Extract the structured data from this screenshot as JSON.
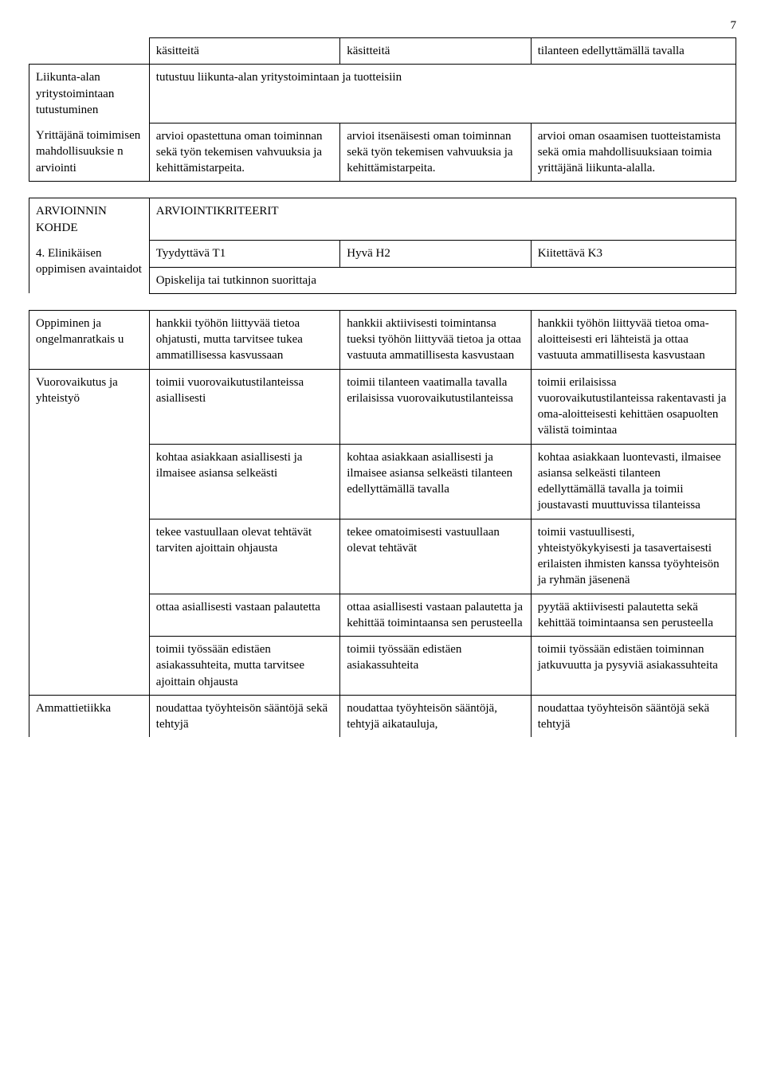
{
  "page_number": "7",
  "table1": {
    "row0": {
      "c1": "käsitteitä",
      "c2": "käsitteitä",
      "c3": "tilanteen edellyttämällä tavalla"
    },
    "row1": {
      "label": "Liikunta-alan yritystoimintaan tutustuminen",
      "span": "tutustuu liikunta-alan yritystoimintaan ja tuotteisiin"
    },
    "row2": {
      "label": "Yrittäjänä toimimisen mahdollisuuksie n arviointi",
      "c1": "arvioi opastettuna oman toiminnan sekä työn tekemisen vahvuuksia ja kehittämistarpeita.",
      "c2": "arvioi itsenäisesti oman toiminnan sekä työn tekemisen vahvuuksia ja kehittämistarpeita.",
      "c3": "arvioi oman osaamisen tuotteistamista sekä omia mahdollisuuksiaan toimia yrittäjänä liikunta-alalla."
    }
  },
  "table2": {
    "row0": {
      "label": "ARVIOINNIN KOHDE",
      "span": "ARVIOINTIKRITEERIT"
    },
    "row1": {
      "label": "4. Elinikäisen oppimisen avaintaidot",
      "c1": "Tyydyttävä T1",
      "c2": "Hyvä H2",
      "c3": "Kiitettävä K3"
    },
    "row1b": {
      "span": "Opiskelija tai tutkinnon suorittaja"
    }
  },
  "table3": {
    "r0": {
      "label": "Oppiminen ja ongelmanratkais u",
      "c1": "hankkii työhön liittyvää tietoa ohjatusti, mutta tarvitsee tukea ammatillisessa kasvussaan",
      "c2": "hankkii aktiivisesti toimintansa tueksi työhön liittyvää tietoa ja ottaa vastuuta ammatillisesta kasvustaan",
      "c3": "hankkii työhön liittyvää tietoa oma-aloitteisesti eri lähteistä ja ottaa vastuuta ammatillisesta kasvustaan"
    },
    "r1": {
      "label": "Vuorovaikutus ja yhteistyö",
      "c1": "toimii vuorovaikutustilanteissa asiallisesti",
      "c2": "toimii tilanteen vaatimalla tavalla erilaisissa vuorovaikutustilanteissa",
      "c3": "toimii erilaisissa vuorovaikutustilanteissa rakentavasti ja oma-aloitteisesti kehittäen osapuolten välistä toimintaa"
    },
    "r2": {
      "c1": "kohtaa asiakkaan asiallisesti ja ilmaisee asiansa selkeästi",
      "c2": "kohtaa asiakkaan asiallisesti ja ilmaisee asiansa selkeästi tilanteen edellyttämällä tavalla",
      "c3": "kohtaa asiakkaan luontevasti, ilmaisee asiansa selkeästi tilanteen edellyttämällä tavalla ja toimii joustavasti muuttuvissa tilanteissa"
    },
    "r3": {
      "c1": "tekee vastuullaan olevat tehtävät tarviten ajoittain ohjausta",
      "c2": "tekee omatoimisesti vastuullaan olevat tehtävät",
      "c3": "toimii vastuullisesti, yhteistyökykyisesti ja tasavertaisesti erilaisten ihmisten kanssa työyhteisön ja ryhmän jäsenenä"
    },
    "r4": {
      "c1": "ottaa asiallisesti vastaan palautetta",
      "c2": "ottaa asiallisesti vastaan palautetta ja kehittää toimintaansa sen perusteella",
      "c3": "pyytää aktiivisesti palautetta sekä kehittää toimintaansa sen perusteella"
    },
    "r5": {
      "c1": "toimii työssään edistäen asiakassuhteita, mutta tarvitsee ajoittain ohjausta",
      "c2": "toimii työssään edistäen asiakassuhteita",
      "c3": "toimii työssään edistäen toiminnan jatkuvuutta ja pysyviä asiakassuhteita"
    },
    "r6": {
      "label": "Ammattietiikka",
      "c1": "noudattaa työyhteisön sääntöjä sekä tehtyjä",
      "c2": "noudattaa työyhteisön sääntöjä, tehtyjä aikatauluja,",
      "c3": "noudattaa työyhteisön sääntöjä sekä tehtyjä"
    }
  }
}
